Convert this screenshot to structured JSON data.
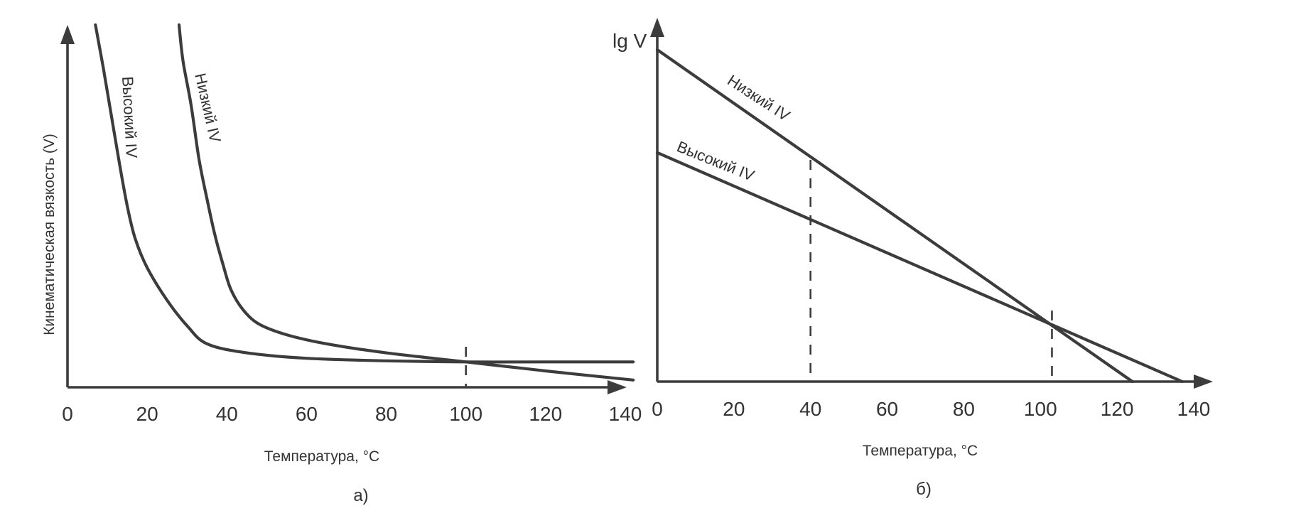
{
  "chart_data": [
    {
      "type": "line",
      "panel_label": "а)",
      "xlabel": "Температура, °С",
      "ylabel": "Кинематическая вязкость  (V)",
      "xlim": [
        0,
        140
      ],
      "x_ticks": [
        "0",
        "20",
        "40",
        "60",
        "80",
        "100",
        "120",
        "140"
      ],
      "y_scale": "unlabeled, no numeric ticks",
      "ylim": [
        0,
        100
      ],
      "grid": false,
      "series": [
        {
          "name": "Высокий IV",
          "x": [
            7,
            9,
            11,
            13,
            15,
            17,
            20,
            25,
            30,
            35,
            45,
            60,
            80,
            100,
            120,
            142
          ],
          "y": [
            100,
            88,
            75,
            62,
            50,
            41,
            33,
            24,
            17,
            12,
            9.5,
            8,
            7.3,
            7,
            7,
            7
          ]
        },
        {
          "name": "Низкий IV",
          "x": [
            28,
            29,
            31,
            33,
            35,
            37,
            39,
            41,
            44,
            48,
            55,
            65,
            80,
            100,
            120,
            142
          ],
          "y": [
            100,
            90,
            78,
            63,
            52,
            42,
            34,
            27,
            21.5,
            17.5,
            14.5,
            12,
            9.5,
            7,
            4.5,
            2
          ]
        }
      ],
      "annotations": [
        "dashed vertical line at x = 100"
      ]
    },
    {
      "type": "line",
      "panel_label": "б)",
      "xlabel": "Температура, °С",
      "ylabel": "lg V",
      "xlim": [
        0,
        140
      ],
      "x_ticks": [
        "0",
        "20",
        "40",
        "60",
        "80",
        "100",
        "120",
        "140"
      ],
      "y_scale": "unlabeled, no numeric ticks",
      "ylim": [
        0,
        100
      ],
      "grid": false,
      "series": [
        {
          "name": "Низкий IV",
          "x": [
            0,
            124
          ],
          "y": [
            100,
            0
          ]
        },
        {
          "name": "Высокий IV",
          "x": [
            0,
            137
          ],
          "y": [
            69,
            0
          ]
        }
      ],
      "annotations": [
        "dashed vertical line at x = 40",
        "dashed vertical line at x = 103"
      ]
    }
  ]
}
